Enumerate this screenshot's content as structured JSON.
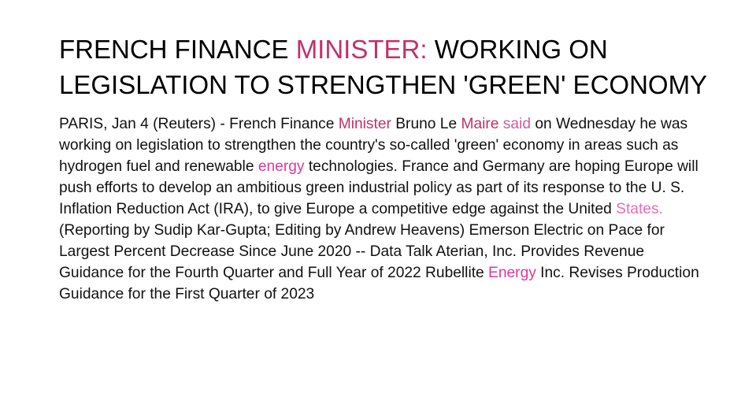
{
  "colors": {
    "headline_highlight": "#c0326b",
    "maire": "#c0326b",
    "said": "#d05fa0",
    "energy": "#e0379a",
    "states": "#e86cb8",
    "text": "#111111"
  },
  "headline": {
    "part1": "FRENCH FINANCE ",
    "highlight": "MINISTER:",
    "part2": " WORKING ON LEGISLATION TO STRENGTHEN 'GREEN' ECONOMY"
  },
  "body": {
    "s1": "PARIS, Jan 4 (Reuters) - French Finance ",
    "w_minister": "Minister",
    "s2": " Bruno Le ",
    "w_maire": "Maire",
    "s3": " ",
    "w_said": "said",
    "s4": " on Wednesday he was working on legislation to strengthen the country's so-called 'green' economy in areas such as hydrogen fuel and renewable ",
    "w_energy": "energy",
    "s5": " technologies. France and Germany are hoping Europe will push efforts to develop an ambitious green industrial policy as part of its response to the U. S. Inflation Reduction Act (IRA), to give Europe a competitive edge against the United ",
    "w_states": "States.",
    "s6": " (Reporting by Sudip Kar-Gupta; Editing by Andrew Heavens) Emerson Electric on Pace for Largest Percent Decrease Since June 2020 -- Data Talk Aterian, Inc. Provides Revenue Guidance for the Fourth Quarter and Full Year of 2022 Rubellite ",
    "w_energy2": "Energy",
    "s7": " Inc. Revises Production Guidance for the First Quarter of 2023"
  }
}
